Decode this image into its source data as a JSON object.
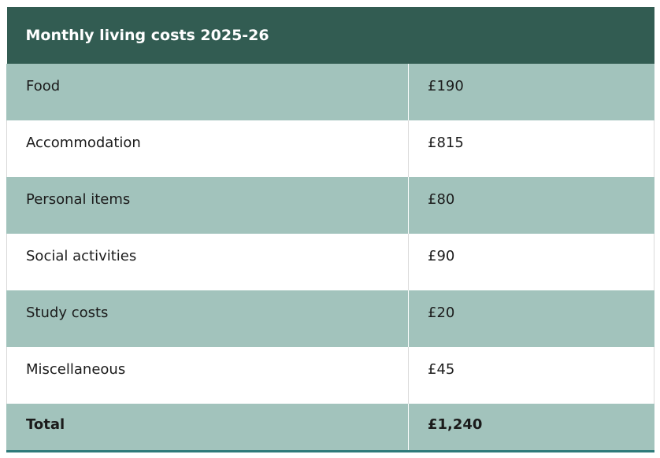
{
  "table": {
    "title": "Monthly living costs 2025-26",
    "rows": [
      {
        "item": "Food",
        "amount": "£190"
      },
      {
        "item": "Accommodation",
        "amount": "£815"
      },
      {
        "item": "Personal items",
        "amount": "£80"
      },
      {
        "item": "Social activities",
        "amount": "£90"
      },
      {
        "item": "Study costs",
        "amount": "£20"
      },
      {
        "item": "Miscellaneous",
        "amount": "£45"
      }
    ],
    "total": {
      "item": "Total",
      "amount": "£1,240"
    }
  },
  "colors": {
    "header_bg": "#325c52",
    "shaded_row_bg": "#a2c3bc",
    "plain_row_bg": "#ffffff",
    "bottom_rule": "#2e7a7a"
  }
}
